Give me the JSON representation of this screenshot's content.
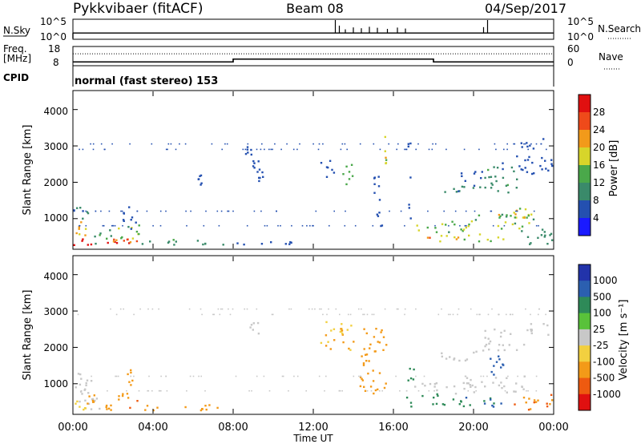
{
  "header": {
    "title": "Pykkvibaer (fitACF)",
    "beam": "Beam 08",
    "date": "04/Sep/2017"
  },
  "nsky_panel": {
    "label": "N.Sky",
    "left_ticks": [
      "10^5",
      "10^0"
    ],
    "right_ticks": [
      "10^5",
      "10^0"
    ],
    "right_label": "N.Search",
    "right_legend_line": "dotted"
  },
  "freq_panel": {
    "label_line1": "Freq.",
    "label_line2": "[MHz]",
    "left_ticks": [
      "18",
      "8"
    ],
    "right_ticks": [
      "60",
      "0"
    ],
    "right_label": "Nave",
    "right_legend_line": "dotted",
    "freq_steps": [
      {
        "t0": 0.0,
        "t1": 8.0,
        "freq": 9.7
      },
      {
        "t0": 8.0,
        "t1": 18.0,
        "freq": 11.3
      },
      {
        "t0": 18.0,
        "t1": 24.0,
        "freq": 9.7
      }
    ],
    "nave_level": 38
  },
  "cpid": {
    "label": "CPID",
    "text": "normal (fast stereo) 153"
  },
  "power_panel": {
    "ylabel": "Slant Range [km]",
    "yticks": [
      "1000",
      "2000",
      "3000",
      "4000"
    ],
    "colorbar_label": "Power [dB]",
    "colorbar_ticks": [
      "4",
      "8",
      "12",
      "16",
      "20",
      "24",
      "28"
    ],
    "colorbar_colors": [
      "#1a1aff",
      "#2450b0",
      "#3a8a6a",
      "#4aa84a",
      "#d7d52a",
      "#f29a1a",
      "#ef4a1a",
      "#e01010"
    ]
  },
  "velocity_panel": {
    "ylabel": "Slant Range [km]",
    "yticks": [
      "1000",
      "2000",
      "3000",
      "4000"
    ],
    "colorbar_label": "Velocity [m s⁻¹]",
    "colorbar_ticks": [
      "1000",
      "500",
      "100",
      "25",
      "-25",
      "-100",
      "-500",
      "-1000"
    ],
    "colorbar_colors": [
      "#2233aa",
      "#2b5fb0",
      "#2e8a58",
      "#59c23a",
      "#c8c8c8",
      "#f2d040",
      "#f39a18",
      "#ee5a10",
      "#e01010"
    ]
  },
  "time_axis": {
    "label": "Time UT",
    "ticks": [
      "00:00",
      "04:00",
      "08:00",
      "12:00",
      "16:00",
      "20:00",
      "00:00"
    ]
  },
  "chart_data": [
    {
      "type": "line",
      "title": "N.Sky / N.Search",
      "yscale": "log",
      "ylim": [
        1,
        100000
      ],
      "xlim": [
        0,
        24
      ],
      "x_unit": "hours UT",
      "baseline": 30,
      "spikes": [
        {
          "x": 13.1,
          "y": 100000
        },
        {
          "x": 13.3,
          "y": 3000
        },
        {
          "x": 13.6,
          "y": 300
        },
        {
          "x": 14.0,
          "y": 1000
        },
        {
          "x": 14.4,
          "y": 600
        },
        {
          "x": 14.8,
          "y": 1500
        },
        {
          "x": 15.2,
          "y": 800
        },
        {
          "x": 15.7,
          "y": 400
        },
        {
          "x": 16.2,
          "y": 900
        },
        {
          "x": 16.6,
          "y": 500
        },
        {
          "x": 20.5,
          "y": 1200
        },
        {
          "x": 20.7,
          "y": 100000
        }
      ]
    },
    {
      "type": "line",
      "title": "Freq. / Nave",
      "ylim": [
        8,
        18
      ],
      "xlim": [
        0,
        24
      ],
      "series": [
        {
          "values": [
            [
              0,
              9.7
            ],
            [
              8,
              9.7
            ],
            [
              8,
              11.3
            ],
            [
              18,
              11.3
            ],
            [
              18,
              9.7
            ],
            [
              24,
              9.7
            ]
          ]
        }
      ]
    },
    {
      "type": "heatmap",
      "title": "Power [dB]",
      "x_unit": "hours UT",
      "y_unit": "km",
      "xlim": [
        0,
        24
      ],
      "ylim": [
        180,
        4500
      ],
      "zlim": [
        0,
        30
      ],
      "regions": [
        {
          "t0": 0.0,
          "t1": 0.9,
          "r0": 250,
          "r1": 550,
          "z": 27
        },
        {
          "t0": 0.0,
          "t1": 0.9,
          "r0": 550,
          "r1": 900,
          "z": 18
        },
        {
          "t0": 0.0,
          "t1": 1.0,
          "r0": 900,
          "r1": 1300,
          "z": 8
        },
        {
          "t0": 0.9,
          "t1": 2.0,
          "r0": 250,
          "r1": 600,
          "z": 10
        },
        {
          "t0": 1.5,
          "t1": 2.3,
          "r0": 250,
          "r1": 420,
          "z": 26
        },
        {
          "t0": 1.8,
          "t1": 3.4,
          "r0": 400,
          "r1": 800,
          "z": 14
        },
        {
          "t0": 2.3,
          "t1": 3.4,
          "r0": 250,
          "r1": 420,
          "z": 24
        },
        {
          "t0": 2.4,
          "t1": 3.2,
          "r0": 700,
          "r1": 1400,
          "z": 6
        },
        {
          "t0": 3.4,
          "t1": 7.5,
          "r0": 250,
          "r1": 420,
          "z": 10
        },
        {
          "t0": 7.5,
          "t1": 12.0,
          "r0": 250,
          "r1": 350,
          "z": 6
        },
        {
          "t0": 6.2,
          "t1": 6.4,
          "r0": 1900,
          "r1": 2200,
          "z": 6
        },
        {
          "t0": 8.5,
          "t1": 9.0,
          "r0": 2700,
          "r1": 3000,
          "z": 5
        },
        {
          "t0": 8.9,
          "t1": 9.3,
          "r0": 2300,
          "r1": 2600,
          "z": 6
        },
        {
          "t0": 9.1,
          "t1": 9.5,
          "r0": 2000,
          "r1": 2300,
          "z": 6
        },
        {
          "t0": 12.3,
          "t1": 13.1,
          "r0": 2100,
          "r1": 2600,
          "z": 6
        },
        {
          "t0": 13.3,
          "t1": 14.0,
          "r0": 1900,
          "r1": 2500,
          "z": 12
        },
        {
          "t0": 15.0,
          "t1": 15.4,
          "r0": 700,
          "r1": 2500,
          "z": 5
        },
        {
          "t0": 15.5,
          "t1": 15.6,
          "r0": 2500,
          "r1": 3300,
          "z": 16
        },
        {
          "t0": 16.7,
          "t1": 16.85,
          "r0": 250,
          "r1": 3200,
          "z": 6
        },
        {
          "t0": 17.2,
          "t1": 19.2,
          "r0": 350,
          "r1": 600,
          "z": 20
        },
        {
          "t0": 17.0,
          "t1": 19.5,
          "r0": 600,
          "r1": 900,
          "z": 14
        },
        {
          "t0": 19.2,
          "t1": 21.5,
          "r0": 350,
          "r1": 550,
          "z": 16
        },
        {
          "t0": 19.0,
          "t1": 23.0,
          "r0": 700,
          "r1": 1100,
          "z": 14
        },
        {
          "t0": 21.0,
          "t1": 22.8,
          "r0": 1000,
          "r1": 1300,
          "z": 18
        },
        {
          "t0": 22.2,
          "t1": 24.0,
          "r0": 250,
          "r1": 700,
          "z": 10
        },
        {
          "t0": 18.5,
          "t1": 20.5,
          "r0": 1600,
          "r1": 1900,
          "z": 8
        },
        {
          "t0": 19.2,
          "t1": 20.5,
          "r0": 2000,
          "r1": 2300,
          "z": 6
        },
        {
          "t0": 20.5,
          "t1": 22.3,
          "r0": 1700,
          "r1": 2400,
          "z": 10
        },
        {
          "t0": 21.4,
          "t1": 23.4,
          "r0": 2200,
          "r1": 2700,
          "z": 6
        },
        {
          "t0": 22.3,
          "t1": 23.6,
          "r0": 2900,
          "r1": 3200,
          "z": 6
        },
        {
          "t0": 23.4,
          "t1": 24.0,
          "r0": 2300,
          "r1": 2600,
          "z": 6
        }
      ]
    },
    {
      "type": "heatmap",
      "title": "Velocity [m s-1]",
      "x_unit": "hours UT",
      "y_unit": "km",
      "xlim": [
        0,
        24
      ],
      "ylim": [
        180,
        4500
      ],
      "zlim": [
        -1000,
        1000
      ],
      "regions": [
        {
          "t0": 0.0,
          "t1": 1.3,
          "r0": 250,
          "r1": 1300,
          "z": 0
        },
        {
          "t0": 0.0,
          "t1": 0.6,
          "r0": 250,
          "r1": 500,
          "z": -60
        },
        {
          "t0": 0.6,
          "t1": 1.4,
          "r0": 250,
          "r1": 700,
          "z": -200
        },
        {
          "t0": 1.4,
          "t1": 2.2,
          "r0": 250,
          "r1": 420,
          "z": -150
        },
        {
          "t0": 2.2,
          "t1": 3.2,
          "r0": 300,
          "r1": 800,
          "z": -250
        },
        {
          "t0": 2.4,
          "t1": 3.0,
          "r0": 800,
          "r1": 1400,
          "z": -80
        },
        {
          "t0": 3.2,
          "t1": 7.5,
          "r0": 250,
          "r1": 420,
          "z": -80
        },
        {
          "t0": 8.8,
          "t1": 9.3,
          "r0": 2300,
          "r1": 2700,
          "z": 0
        },
        {
          "t0": 12.3,
          "t1": 14.0,
          "r0": 1900,
          "r1": 2700,
          "z": -60
        },
        {
          "t0": 14.3,
          "t1": 15.6,
          "r0": 700,
          "r1": 2500,
          "z": -150
        },
        {
          "t0": 16.6,
          "t1": 17.0,
          "r0": 250,
          "r1": 1500,
          "z": 150
        },
        {
          "t0": 17.2,
          "t1": 19.5,
          "r0": 350,
          "r1": 700,
          "z": 200
        },
        {
          "t0": 17.0,
          "t1": 19.0,
          "r0": 700,
          "r1": 1000,
          "z": 0
        },
        {
          "t0": 19.5,
          "t1": 21.8,
          "r0": 350,
          "r1": 600,
          "z": 300
        },
        {
          "t0": 19.0,
          "t1": 22.5,
          "r0": 700,
          "r1": 1200,
          "z": 0
        },
        {
          "t0": 20.5,
          "t1": 21.5,
          "r0": 1200,
          "r1": 1800,
          "z": 600
        },
        {
          "t0": 22.0,
          "t1": 24.0,
          "r0": 250,
          "r1": 700,
          "z": -300
        },
        {
          "t0": 18.2,
          "t1": 20.5,
          "r0": 1600,
          "r1": 1900,
          "z": 0
        },
        {
          "t0": 20.5,
          "t1": 22.5,
          "r0": 1900,
          "r1": 2500,
          "z": 0
        },
        {
          "t0": 22.5,
          "t1": 24.0,
          "r0": 2300,
          "r1": 2700,
          "z": 0
        }
      ]
    }
  ]
}
